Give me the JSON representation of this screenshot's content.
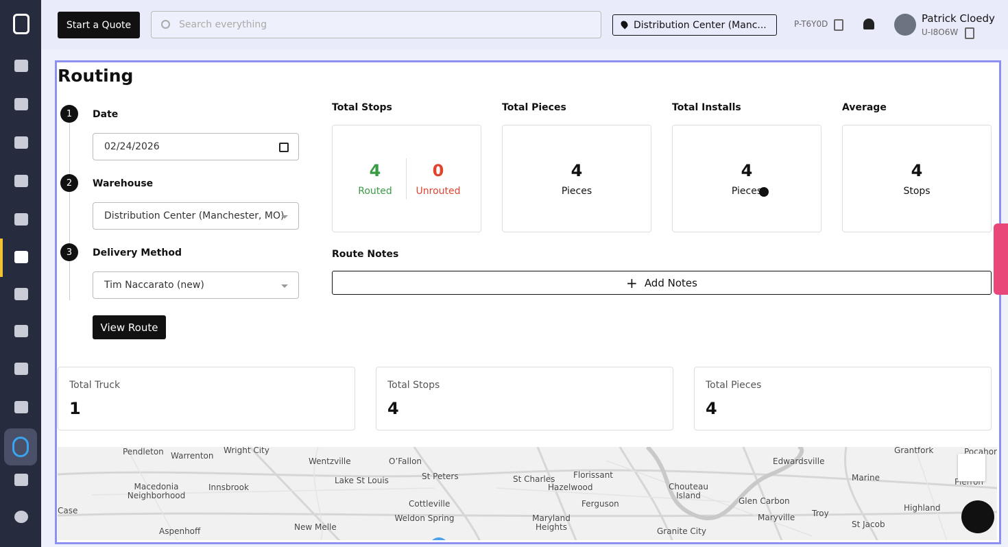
{
  "header": {
    "quote_button": "Start a Quote",
    "search_placeholder": "Search everything",
    "location": "Distribution Center (Manc...",
    "code": "P-T6Y0D",
    "user_name": "Patrick Cloedy",
    "user_id": "U-I8O6W"
  },
  "page": {
    "title": "Routing",
    "steps": [
      {
        "number": 1,
        "label": "Date",
        "value": "02/24/2026"
      },
      {
        "number": 2,
        "label": "Warehouse",
        "value": "Distribution Center (Manchester, MO)"
      },
      {
        "number": 3,
        "label": "Delivery Method",
        "value": "Tim Naccarato (new)"
      }
    ],
    "view_route": "View Route",
    "stops_card": {
      "title": "Total Stops",
      "routed": 4,
      "routed_label": "Routed",
      "unrouted": 0,
      "unrouted_label": "Unrouted"
    },
    "stat_cards": [
      {
        "title": "Total Pieces",
        "value": 4,
        "unit": "Pieces"
      },
      {
        "title": "Total Installs",
        "value": 4,
        "unit": "Pieces"
      },
      {
        "title": "Average",
        "value": 4,
        "unit": "Stops"
      }
    ],
    "route_notes": {
      "label": "Route Notes",
      "button": "Add Notes"
    },
    "summary": [
      {
        "label": "Total Truck",
        "value": 1
      },
      {
        "label": "Total Stops",
        "value": 4
      },
      {
        "label": "Total Pieces",
        "value": 4
      }
    ]
  },
  "map": {
    "labels": [
      "Pendleton",
      "Warrenton",
      "Wright City",
      "Wentzville",
      "O’Fallon",
      "Edwardsville",
      "Grantfork",
      "Pocahor",
      "Florissant",
      "St Peters",
      "St Charles",
      "Lake St Louis",
      "Marine",
      "Pierron",
      "Macedonia Neighborhood",
      "Innsbrook",
      "Hazelwood",
      "Chouteau Island",
      "Cottleville",
      "Ferguson",
      "Glen Carbon",
      "Highland",
      "Case",
      "Maryland Heights",
      "Troy",
      "Maryville",
      "Weldon Spring",
      "New Melle",
      "St Jacob",
      "Aspenhoff",
      "Granite City"
    ]
  }
}
